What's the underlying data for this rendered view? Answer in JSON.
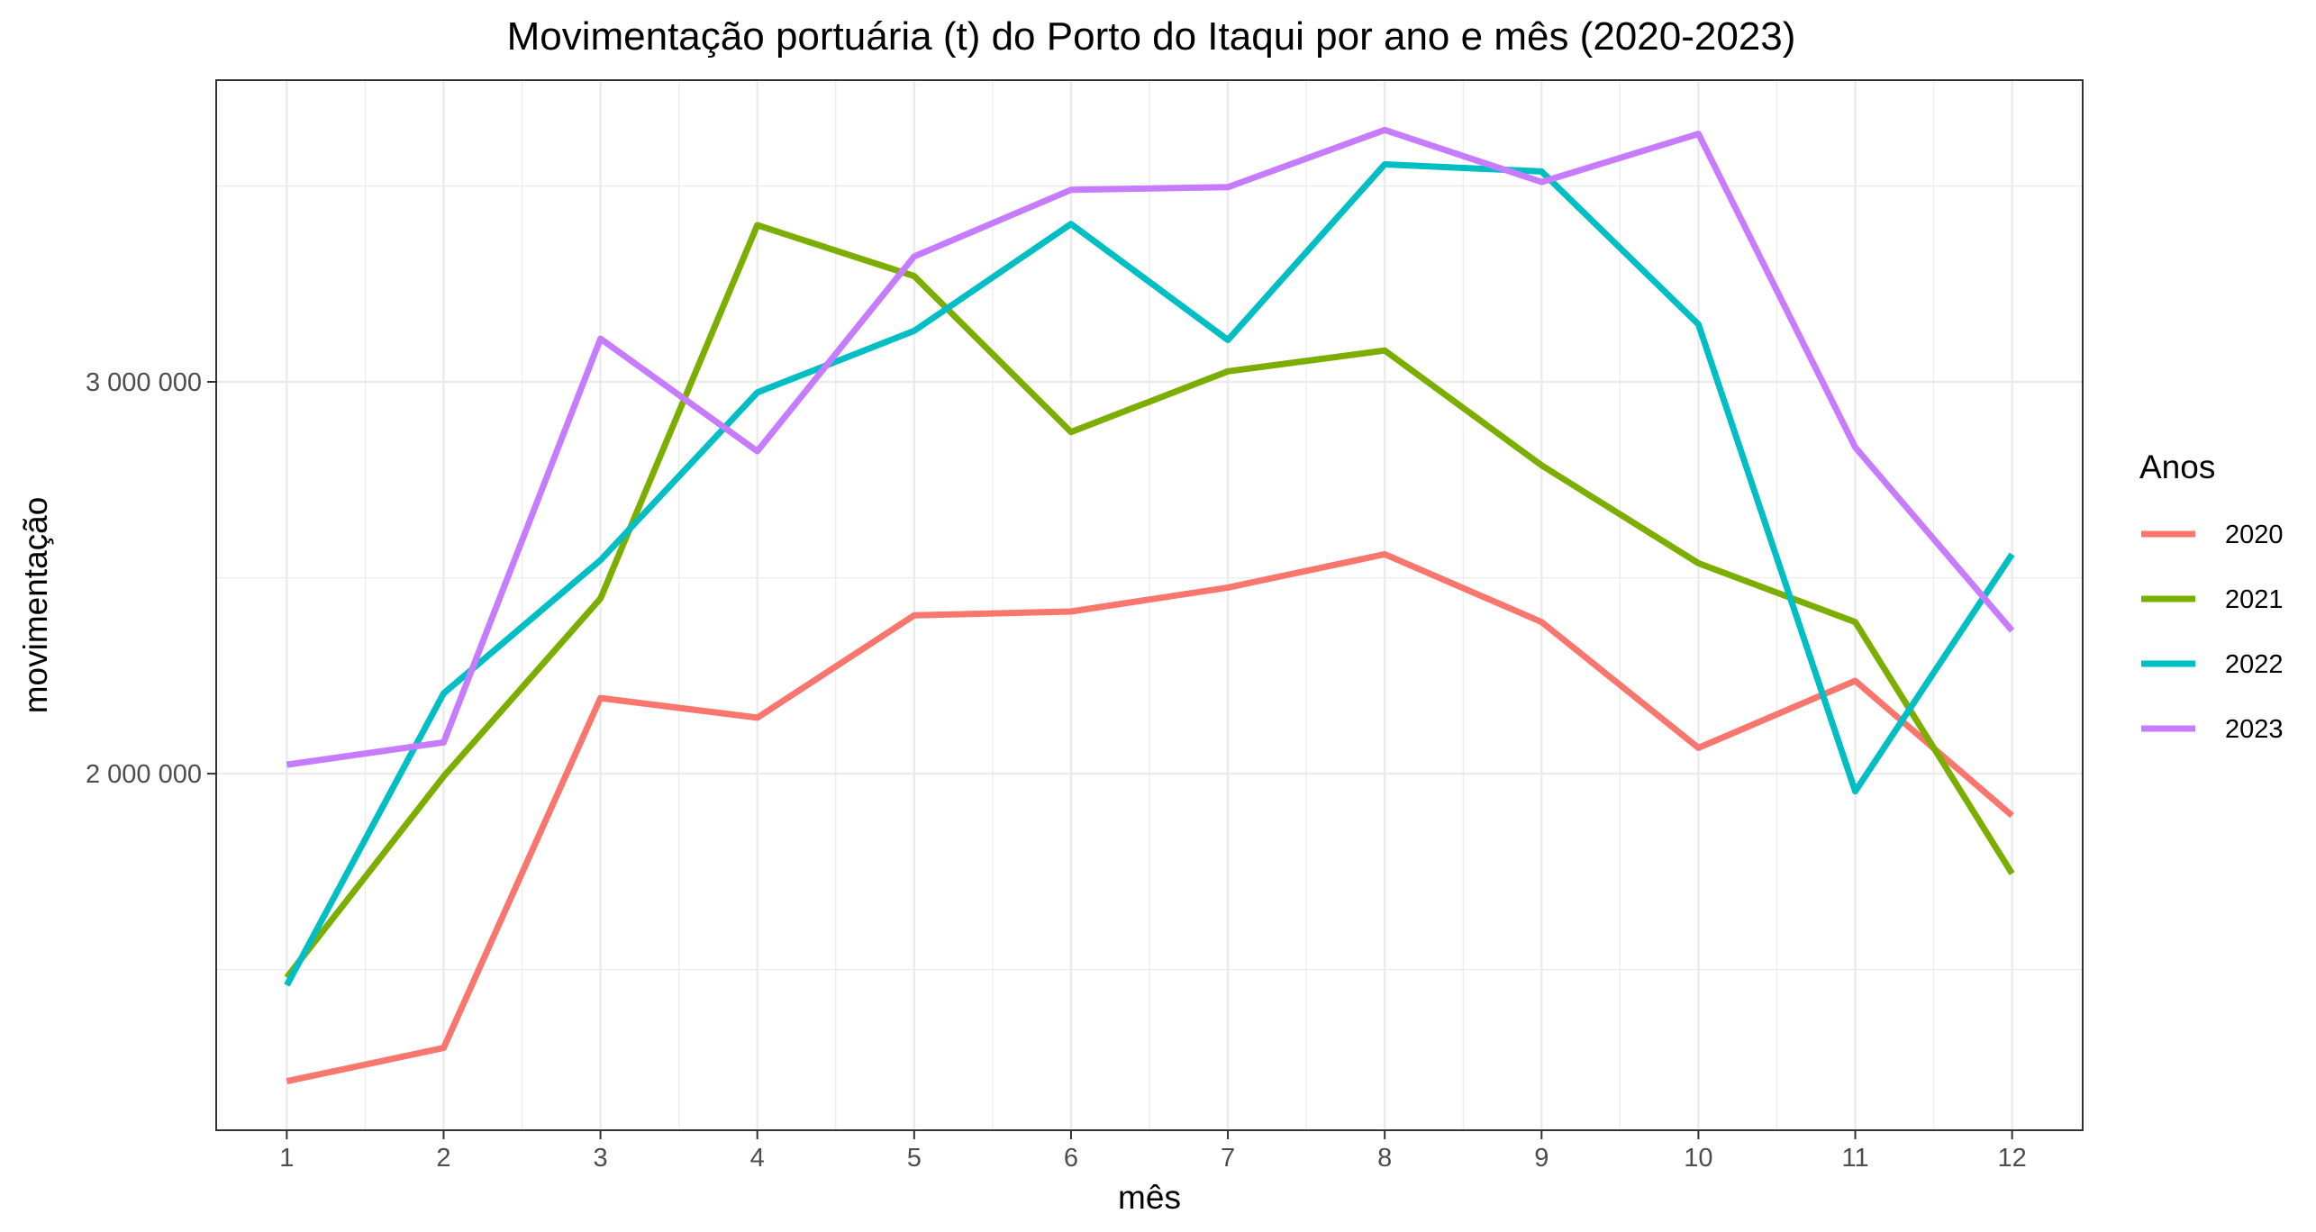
{
  "chart_data": {
    "type": "line",
    "title": "Movimentação portuária (t) do Porto do Itaqui por ano e mês (2020-2023)",
    "xlabel": "mês",
    "ylabel": "movimentação",
    "x": [
      1,
      2,
      3,
      4,
      5,
      6,
      7,
      8,
      9,
      10,
      11,
      12
    ],
    "x_tick_labels": [
      "1",
      "2",
      "3",
      "4",
      "5",
      "6",
      "7",
      "8",
      "9",
      "10",
      "11",
      "12"
    ],
    "xlim": [
      0.55,
      12.45
    ],
    "ylim": [
      1090000,
      3770000
    ],
    "y_major_ticks": [
      2000000,
      3000000
    ],
    "y_tick_labels": [
      "2 000 000",
      "3 000 000"
    ],
    "y_minor_ticks": [
      1500000,
      2500000,
      3500000
    ],
    "grid": true,
    "legend": {
      "title": "Anos",
      "position": "right"
    },
    "series": [
      {
        "name": "2020",
        "color": "#F8766D",
        "values": [
          1215000,
          1300000,
          2193000,
          2143000,
          2404000,
          2414000,
          2475000,
          2560000,
          2387000,
          2066000,
          2237000,
          1893000
        ]
      },
      {
        "name": "2021",
        "color": "#7CAE00",
        "values": [
          1480000,
          1993000,
          2447000,
          3400000,
          3270000,
          2872000,
          3027000,
          3080000,
          2787000,
          2537000,
          2387000,
          1745000
        ]
      },
      {
        "name": "2022",
        "color": "#00BFC4",
        "values": [
          1460000,
          2205000,
          2545000,
          2973000,
          3130000,
          3403000,
          3107000,
          3555000,
          3537000,
          3147000,
          1955000,
          2560000
        ]
      },
      {
        "name": "2023",
        "color": "#C77CFF",
        "values": [
          2023000,
          2080000,
          3110000,
          2823000,
          3320000,
          3490000,
          3497000,
          3643000,
          3510000,
          3633000,
          2833000,
          2365000
        ]
      }
    ]
  }
}
